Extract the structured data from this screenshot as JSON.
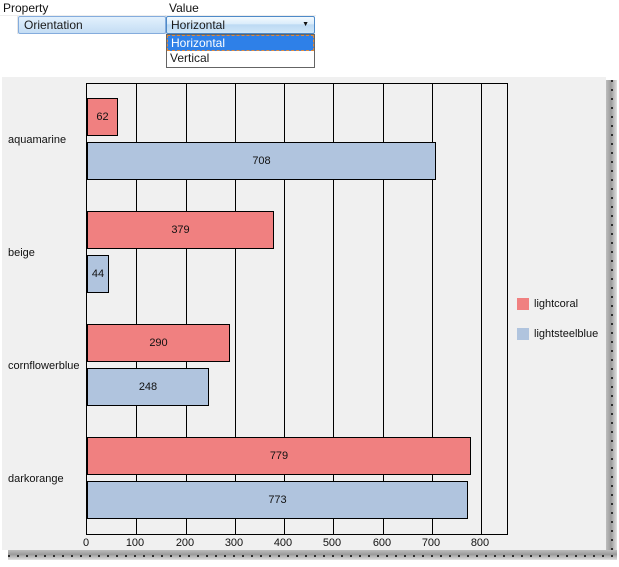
{
  "property_grid": {
    "columns": {
      "property": "Property",
      "value": "Value"
    },
    "row": {
      "property": "Orientation"
    },
    "combobox": {
      "selected_value": "Horizontal"
    },
    "dropdown": {
      "options": [
        {
          "label": "Horizontal",
          "selected": true
        },
        {
          "label": "Vertical",
          "selected": false
        }
      ]
    }
  },
  "chart_data": {
    "type": "bar",
    "orientation": "horizontal",
    "categories": [
      "aquamarine",
      "beige",
      "cornflowerblue",
      "darkorange"
    ],
    "series": [
      {
        "name": "lightcoral",
        "color": "#f08080",
        "values": [
          62,
          379,
          290,
          779
        ]
      },
      {
        "name": "lightsteelblue",
        "color": "#b0c4de",
        "values": [
          708,
          44,
          248,
          773
        ]
      }
    ],
    "xlim": [
      0,
      856
    ],
    "xticks": [
      0,
      100,
      200,
      300,
      400,
      500,
      600,
      700,
      800
    ],
    "grid": true,
    "bar_labels": true,
    "legend_position": "right",
    "plot_background": "#f0f0f0",
    "gridline_color": "#000000",
    "bar_border_color": "#000000"
  }
}
